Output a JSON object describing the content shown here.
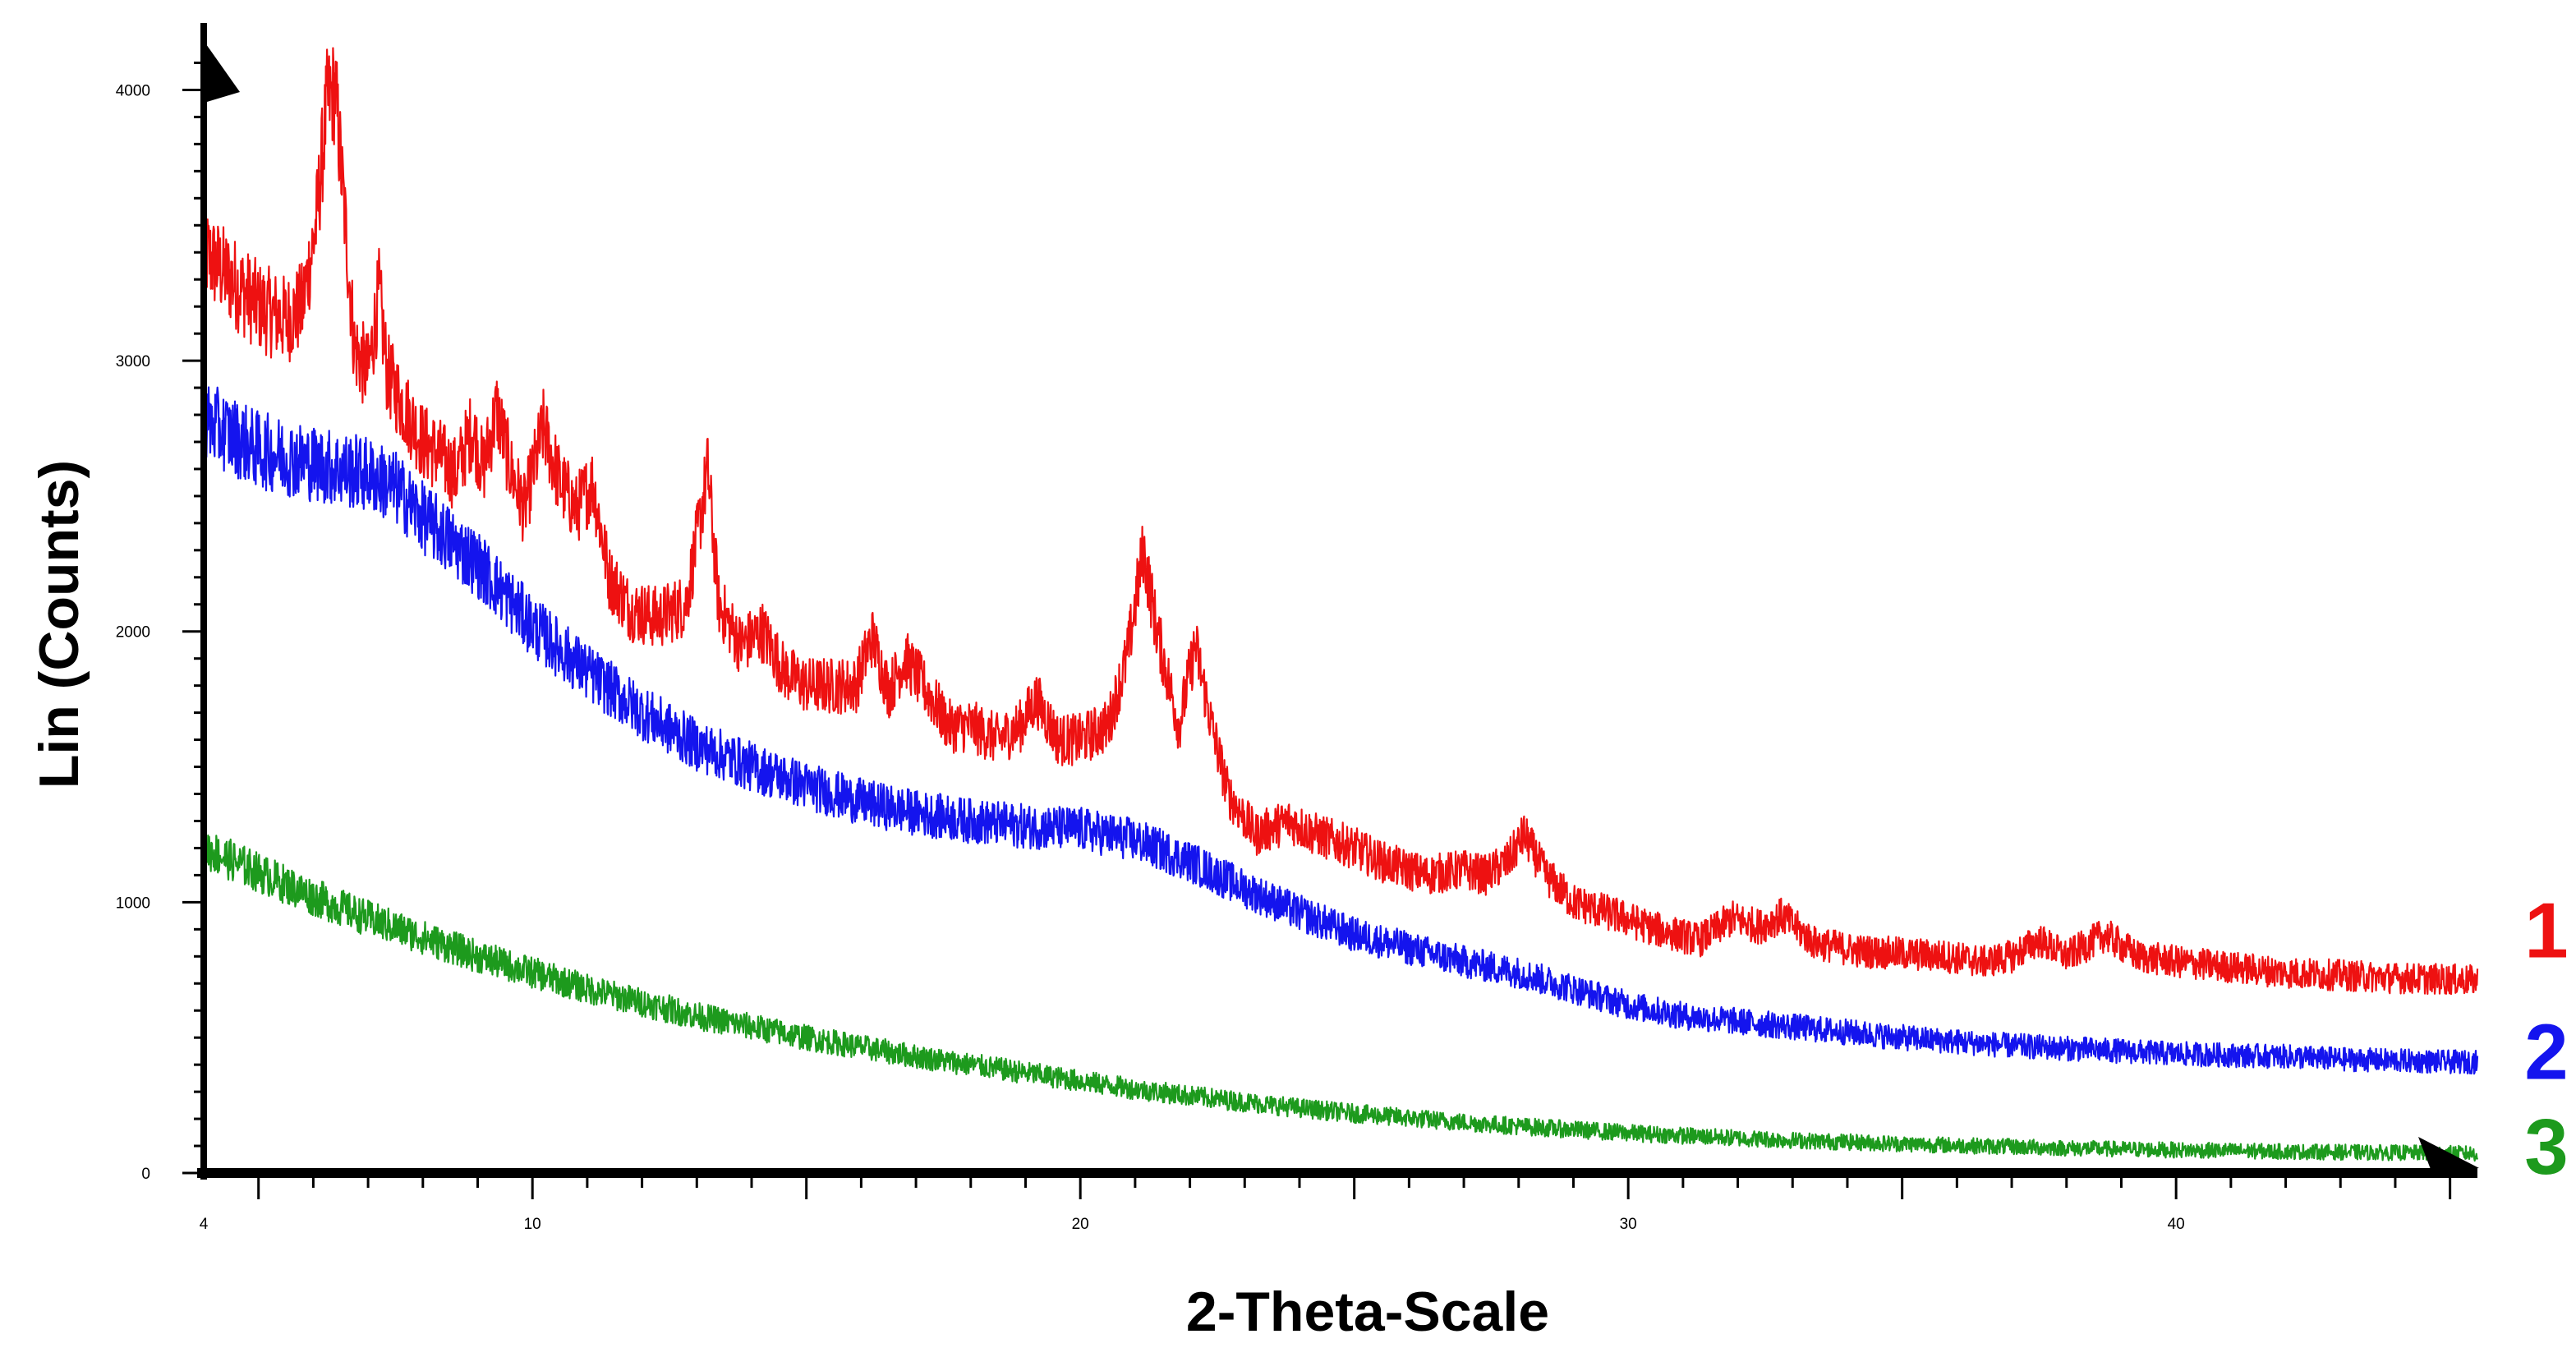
{
  "chart_data": {
    "type": "line",
    "title": "",
    "xlabel": "2-Theta-Scale",
    "ylabel": "Lin (Counts)",
    "xlim": [
      4,
      45.5
    ],
    "ylim": [
      0,
      4150
    ],
    "x_ticks": [
      4,
      10,
      20,
      30,
      40
    ],
    "y_ticks": [
      0,
      1000,
      2000,
      3000,
      4000
    ],
    "x_tick_labels": [
      "4",
      "10",
      "20",
      "30",
      "40"
    ],
    "y_tick_labels": [
      "0",
      "1000",
      "2000",
      "3000",
      "4000"
    ],
    "grid": false,
    "legend": "right, as curve-end labels",
    "series": [
      {
        "name": "1",
        "color": "#ee1111",
        "label_end_y": 900,
        "points": [
          [
            4.0,
            3400
          ],
          [
            4.5,
            3300
          ],
          [
            5.0,
            3200
          ],
          [
            5.5,
            3150
          ],
          [
            5.8,
            3200
          ],
          [
            6.05,
            3500
          ],
          [
            6.25,
            3950
          ],
          [
            6.4,
            4000
          ],
          [
            6.55,
            3600
          ],
          [
            6.75,
            3050
          ],
          [
            7.0,
            2950
          ],
          [
            7.2,
            3250
          ],
          [
            7.35,
            2950
          ],
          [
            7.6,
            2850
          ],
          [
            8.0,
            2700
          ],
          [
            8.3,
            2650
          ],
          [
            8.6,
            2580
          ],
          [
            8.9,
            2750
          ],
          [
            9.1,
            2600
          ],
          [
            9.35,
            2820
          ],
          [
            9.6,
            2600
          ],
          [
            9.85,
            2450
          ],
          [
            10.2,
            2750
          ],
          [
            10.5,
            2550
          ],
          [
            10.8,
            2450
          ],
          [
            11.1,
            2550
          ],
          [
            11.4,
            2200
          ],
          [
            11.8,
            2080
          ],
          [
            12.3,
            2050
          ],
          [
            12.8,
            2100
          ],
          [
            13.05,
            2400
          ],
          [
            13.2,
            2600
          ],
          [
            13.4,
            2100
          ],
          [
            13.8,
            1950
          ],
          [
            14.2,
            2000
          ],
          [
            14.6,
            1850
          ],
          [
            15.0,
            1800
          ],
          [
            15.5,
            1800
          ],
          [
            15.9,
            1800
          ],
          [
            16.2,
            1980
          ],
          [
            16.5,
            1780
          ],
          [
            16.8,
            1900
          ],
          [
            17.2,
            1780
          ],
          [
            17.6,
            1650
          ],
          [
            18.0,
            1650
          ],
          [
            18.5,
            1600
          ],
          [
            18.9,
            1650
          ],
          [
            19.2,
            1750
          ],
          [
            19.6,
            1600
          ],
          [
            20.0,
            1600
          ],
          [
            20.5,
            1650
          ],
          [
            20.85,
            1900
          ],
          [
            21.15,
            2300
          ],
          [
            21.4,
            2000
          ],
          [
            21.8,
            1650
          ],
          [
            22.1,
            1950
          ],
          [
            22.4,
            1650
          ],
          [
            22.7,
            1400
          ],
          [
            23.2,
            1250
          ],
          [
            23.8,
            1300
          ],
          [
            24.3,
            1250
          ],
          [
            25.0,
            1200
          ],
          [
            25.5,
            1150
          ],
          [
            26.3,
            1100
          ],
          [
            27.0,
            1120
          ],
          [
            27.4,
            1100
          ],
          [
            27.8,
            1150
          ],
          [
            28.1,
            1250
          ],
          [
            28.5,
            1100
          ],
          [
            29.0,
            1000
          ],
          [
            29.8,
            950
          ],
          [
            30.5,
            900
          ],
          [
            31.3,
            860
          ],
          [
            31.9,
            940
          ],
          [
            32.4,
            910
          ],
          [
            32.8,
            950
          ],
          [
            33.4,
            850
          ],
          [
            34.2,
            820
          ],
          [
            35.0,
            810
          ],
          [
            35.8,
            800
          ],
          [
            36.5,
            780
          ],
          [
            37.0,
            800
          ],
          [
            37.5,
            860
          ],
          [
            38.0,
            800
          ],
          [
            38.7,
            880
          ],
          [
            39.3,
            800
          ],
          [
            40.0,
            780
          ],
          [
            41.0,
            760
          ],
          [
            42.0,
            740
          ],
          [
            43.0,
            730
          ],
          [
            44.0,
            720
          ],
          [
            45.0,
            715
          ],
          [
            45.5,
            710
          ]
        ]
      },
      {
        "name": "2",
        "color": "#1414ee",
        "label_end_y": 450,
        "points": [
          [
            4.0,
            2780
          ],
          [
            5.0,
            2670
          ],
          [
            6.0,
            2620
          ],
          [
            7.0,
            2580
          ],
          [
            7.5,
            2530
          ],
          [
            8.0,
            2420
          ],
          [
            9.0,
            2250
          ],
          [
            10.0,
            2020
          ],
          [
            11.0,
            1850
          ],
          [
            12.0,
            1700
          ],
          [
            13.0,
            1580
          ],
          [
            14.0,
            1500
          ],
          [
            15.0,
            1430
          ],
          [
            16.0,
            1370
          ],
          [
            17.0,
            1330
          ],
          [
            18.0,
            1300
          ],
          [
            19.0,
            1280
          ],
          [
            20.0,
            1270
          ],
          [
            21.0,
            1230
          ],
          [
            22.0,
            1150
          ],
          [
            23.0,
            1050
          ],
          [
            24.0,
            960
          ],
          [
            25.0,
            880
          ],
          [
            26.0,
            830
          ],
          [
            27.0,
            780
          ],
          [
            28.0,
            740
          ],
          [
            29.0,
            680
          ],
          [
            30.0,
            620
          ],
          [
            31.0,
            580
          ],
          [
            32.0,
            560
          ],
          [
            33.0,
            540
          ],
          [
            34.0,
            520
          ],
          [
            35.0,
            500
          ],
          [
            36.0,
            485
          ],
          [
            37.0,
            470
          ],
          [
            38.0,
            460
          ],
          [
            39.0,
            450
          ],
          [
            40.0,
            440
          ],
          [
            41.0,
            435
          ],
          [
            42.0,
            430
          ],
          [
            43.0,
            420
          ],
          [
            44.0,
            415
          ],
          [
            45.0,
            410
          ],
          [
            45.5,
            410
          ]
        ]
      },
      {
        "name": "3",
        "color": "#1d9a1d",
        "label_end_y": 100,
        "points": [
          [
            4.0,
            1200
          ],
          [
            5.0,
            1110
          ],
          [
            6.0,
            1020
          ],
          [
            7.0,
            940
          ],
          [
            8.0,
            870
          ],
          [
            9.0,
            800
          ],
          [
            10.0,
            740
          ],
          [
            11.0,
            680
          ],
          [
            12.0,
            630
          ],
          [
            13.0,
            580
          ],
          [
            14.0,
            540
          ],
          [
            15.0,
            500
          ],
          [
            16.0,
            465
          ],
          [
            17.0,
            430
          ],
          [
            18.0,
            400
          ],
          [
            19.0,
            370
          ],
          [
            20.0,
            340
          ],
          [
            21.0,
            310
          ],
          [
            22.0,
            285
          ],
          [
            23.0,
            262
          ],
          [
            24.0,
            240
          ],
          [
            25.0,
            220
          ],
          [
            26.0,
            203
          ],
          [
            27.0,
            187
          ],
          [
            28.0,
            173
          ],
          [
            29.0,
            160
          ],
          [
            30.0,
            148
          ],
          [
            31.0,
            138
          ],
          [
            32.0,
            129
          ],
          [
            33.0,
            121
          ],
          [
            34.0,
            114
          ],
          [
            35.0,
            108
          ],
          [
            36.0,
            102
          ],
          [
            37.0,
            97
          ],
          [
            38.0,
            92
          ],
          [
            39.0,
            88
          ],
          [
            40.0,
            85
          ],
          [
            41.0,
            82
          ],
          [
            42.0,
            79
          ],
          [
            43.0,
            77
          ],
          [
            44.0,
            75
          ],
          [
            45.0,
            73
          ],
          [
            45.5,
            72
          ]
        ]
      }
    ]
  }
}
